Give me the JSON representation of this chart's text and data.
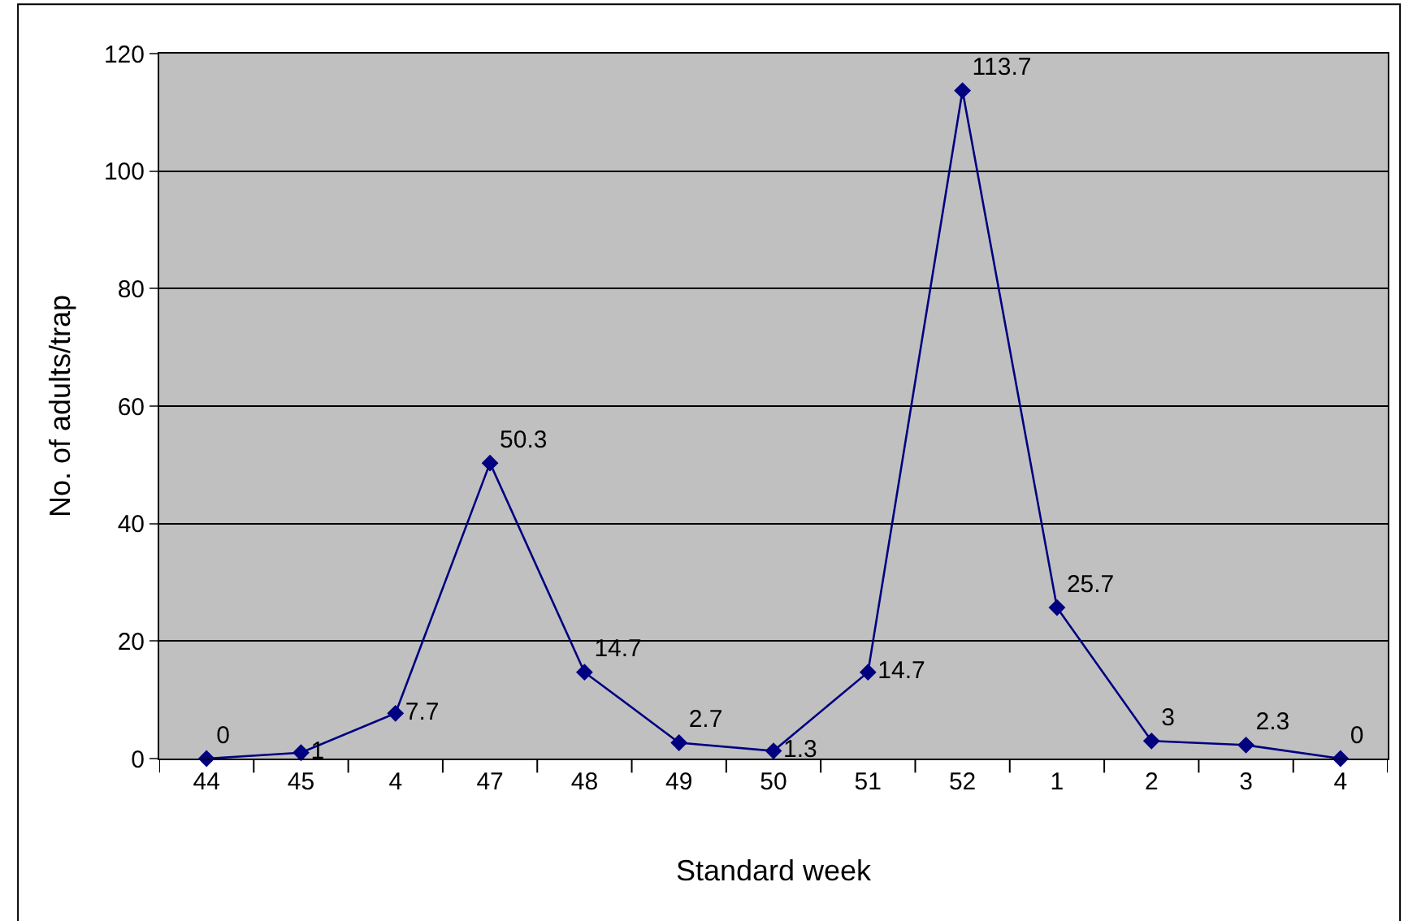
{
  "chart_data": {
    "type": "line",
    "xlabel": "Standard week",
    "ylabel": "No. of adults/trap",
    "categories": [
      "44",
      "45",
      "4",
      "47",
      "48",
      "49",
      "50",
      "51",
      "52",
      "1",
      "2",
      "3",
      "4"
    ],
    "series": [
      {
        "color": "#000080",
        "values": [
          0,
          1,
          7.7,
          50.3,
          14.7,
          2.7,
          1.3,
          14.7,
          113.7,
          25.7,
          3,
          2.3,
          0
        ]
      }
    ],
    "ylim": [
      0,
      120
    ],
    "yticks": [
      0,
      20,
      40,
      60,
      80,
      100,
      120
    ],
    "grid": "y",
    "marker": "diamond",
    "line_style": "solid",
    "data_labels": true
  }
}
